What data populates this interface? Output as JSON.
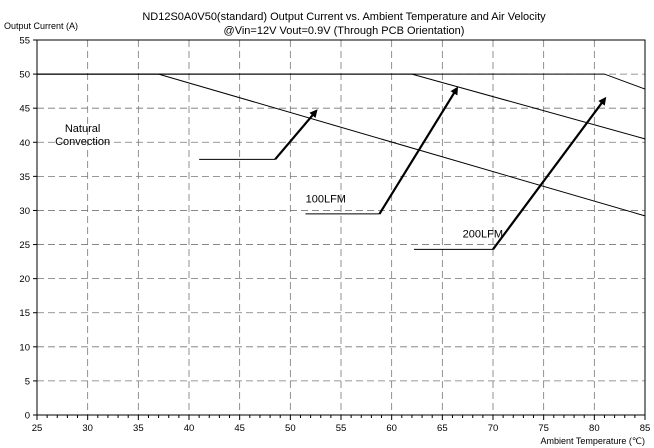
{
  "chart_data": {
    "type": "line",
    "title": "ND12S0A0V50(standard)  Output Current vs. Ambient Temperature and Air Velocity",
    "subtitle": "@Vin=12V Vout=0.9V (Through PCB Orientation)",
    "xlabel": "Ambient Temperature (℃)",
    "ylabel": "Output Current (A)",
    "xlim": [
      25,
      85
    ],
    "ylim": [
      0,
      55
    ],
    "x_ticks": [
      25,
      30,
      35,
      40,
      45,
      50,
      55,
      60,
      65,
      70,
      75,
      80,
      85
    ],
    "y_ticks": [
      0,
      5,
      10,
      15,
      20,
      25,
      30,
      35,
      40,
      45,
      50,
      55
    ],
    "grid": true,
    "series": [
      {
        "name": "Natural Convection",
        "x": [
          25,
          37,
          85
        ],
        "y": [
          50,
          50,
          29.2
        ]
      },
      {
        "name": "100LFM",
        "x": [
          25,
          62,
          85
        ],
        "y": [
          50,
          50,
          40.5
        ]
      },
      {
        "name": "200LFM",
        "x": [
          25,
          81,
          85
        ],
        "y": [
          50,
          50,
          47.8
        ]
      }
    ],
    "annotations": [
      {
        "text_lines": [
          "Natural",
          "Convection"
        ],
        "label_at": [
          29.5,
          41.5
        ],
        "leader": [
          [
            41,
            37.5
          ],
          [
            48.5,
            37.5
          ]
        ],
        "arrow_from": [
          48.5,
          37.5
        ],
        "arrow_to": [
          52.5,
          44.5
        ]
      },
      {
        "text_lines": [
          "100LFM"
        ],
        "label_at": [
          53.5,
          31.2
        ],
        "leader": [
          [
            51.5,
            29.5
          ],
          [
            58.8,
            29.5
          ]
        ],
        "arrow_from": [
          58.8,
          29.5
        ],
        "arrow_to": [
          66.4,
          47.8
        ]
      },
      {
        "text_lines": [
          "200LFM"
        ],
        "label_at": [
          69,
          26
        ],
        "leader": [
          [
            62.2,
            24.3
          ],
          [
            70,
            24.3
          ]
        ],
        "arrow_from": [
          70,
          24.3
        ],
        "arrow_to": [
          81,
          46.3
        ]
      }
    ]
  }
}
